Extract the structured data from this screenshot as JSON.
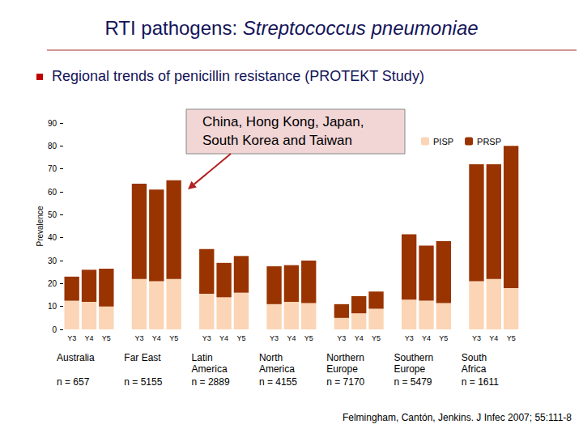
{
  "chart_data": {
    "type": "bar",
    "stacked": true,
    "title": "RTI pathogens: Streptococcus pneumoniae",
    "subtitle": "Regional trends of penicillin resistance (PROTEKT Study)",
    "annotation": "China, Hong Kong, Japan, South Korea and Taiwan",
    "source": "Felmingham, Cantón, Jenkins. J Infec 2007; 55:111-8",
    "y_label": "Prevalence",
    "ylim": [
      0,
      90
    ],
    "yticks": [
      0,
      10,
      20,
      30,
      40,
      50,
      60,
      70,
      80,
      90
    ],
    "grid": false,
    "legend": "top-right",
    "categories": [
      "Y3",
      "Y4",
      "Y5"
    ],
    "series": [
      {
        "name": "PISP",
        "color": "#fbd5b5"
      },
      {
        "name": "PRSP",
        "color": "#993300"
      }
    ],
    "groups": [
      {
        "name": "Australia",
        "n": "n = 657",
        "values": [
          [
            12.5,
            12,
            10
          ],
          [
            10.5,
            14,
            16.5
          ]
        ]
      },
      {
        "name": "Far East",
        "n": "n = 5155",
        "values": [
          [
            22,
            21,
            22
          ],
          [
            41.5,
            40,
            43
          ]
        ]
      },
      {
        "name": "Latin America",
        "n": "n = 2889",
        "values": [
          [
            15.5,
            14,
            16
          ],
          [
            19.5,
            15,
            16
          ]
        ]
      },
      {
        "name": "North America",
        "n": "n = 4155",
        "values": [
          [
            11,
            12,
            11.5
          ],
          [
            16.5,
            16,
            18.5
          ]
        ]
      },
      {
        "name": "Northern Europe",
        "n": "n = 7170",
        "values": [
          [
            5,
            7,
            9
          ],
          [
            6,
            7.5,
            7.5
          ]
        ]
      },
      {
        "name": "Southern Europe",
        "n": "n = 5479",
        "values": [
          [
            13,
            12.5,
            11.5
          ],
          [
            28.5,
            24,
            27
          ]
        ]
      },
      {
        "name": "South Africa",
        "n": "n = 1611",
        "values": [
          [
            21,
            22,
            18
          ],
          [
            51,
            50,
            62
          ]
        ]
      }
    ]
  }
}
